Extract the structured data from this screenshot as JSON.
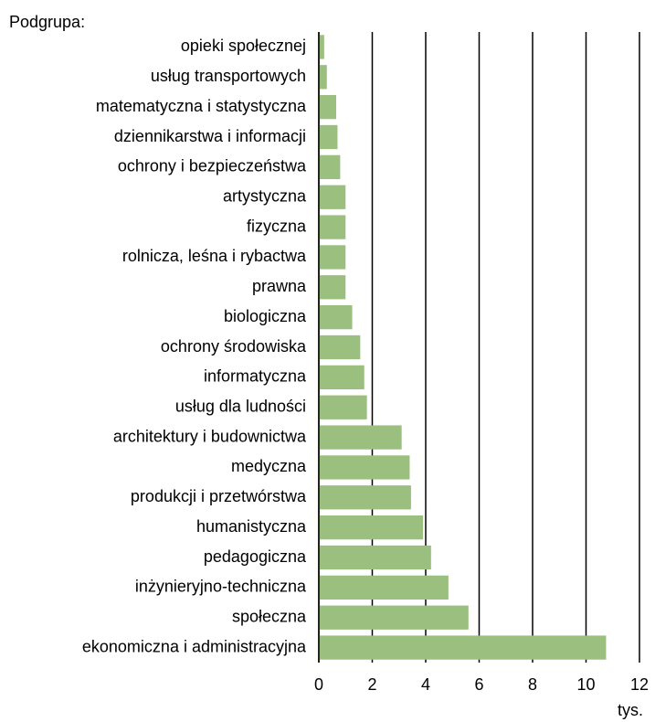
{
  "chart_data": {
    "type": "barh",
    "y_label": "Podgrupa:",
    "x_label": "tys.",
    "categories": [
      "opieki społecznej",
      "usług transportowych",
      "matematyczna i statystyczna",
      "dziennikarstwa i informacji",
      "ochrony i bezpieczeństwa",
      "artystyczna",
      "fizyczna",
      "rolnicza, leśna i rybactwa",
      "prawna",
      "biologiczna",
      "ochrony środowiska",
      "informatyczna",
      "usług dla ludności",
      "architektury i budownictwa",
      "medyczna",
      "produkcji i przetwórstwa",
      "humanistyczna",
      "pedagogiczna",
      "inżynieryjno-techniczna",
      "społeczna",
      "ekonomiczna i administracyjna"
    ],
    "values": [
      0.2,
      0.3,
      0.65,
      0.7,
      0.8,
      1.0,
      1.0,
      1.0,
      1.0,
      1.25,
      1.55,
      1.7,
      1.8,
      3.1,
      3.4,
      3.45,
      3.9,
      4.2,
      4.85,
      5.6,
      10.75
    ],
    "color": "#9bbf7f",
    "xlim": [
      0,
      12
    ],
    "xticks": [
      0,
      2,
      4,
      6,
      8,
      10,
      12
    ],
    "grid": true
  }
}
